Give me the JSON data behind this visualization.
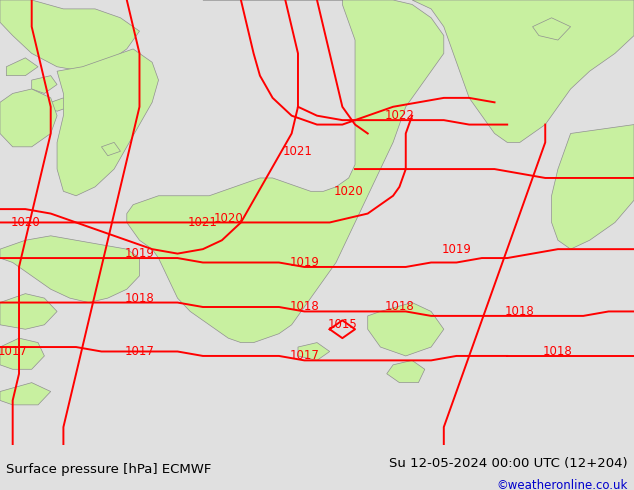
{
  "title_left": "Surface pressure [hPa] ECMWF",
  "title_right": "Su 12-05-2024 00:00 UTC (12+204)",
  "credit": "©weatheronline.co.uk",
  "bg_color": "#e0e0e0",
  "land_color": "#c8f0a0",
  "sea_color": "#e0e0e0",
  "contour_color": "#ff0000",
  "border_color": "#909090",
  "text_color": "#000000",
  "credit_color": "#0000cc",
  "contour_linewidth": 1.4,
  "label_fontsize": 8.5,
  "footer_fontsize": 9.5,
  "credit_fontsize": 8.5,
  "figwidth": 6.34,
  "figheight": 4.9,
  "dpi": 100
}
